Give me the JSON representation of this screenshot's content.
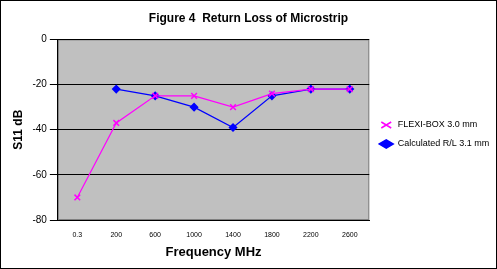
{
  "chart_data": {
    "type": "line",
    "title": "Figure 4  Return Loss of Microstrip",
    "x_label": "Frequency MHz",
    "y_label": "S11 dB",
    "categories": [
      "0.3",
      "200",
      "600",
      "1000",
      "1400",
      "1800",
      "2200",
      "2600"
    ],
    "series": [
      {
        "name": "FLEXI-BOX 3.0 mm",
        "color": "#ff00ff",
        "marker": "x",
        "values": [
          -70,
          -37,
          -25,
          -25,
          -30,
          -24,
          -22,
          -22
        ]
      },
      {
        "name": "Calculated R/L 3.1 mm",
        "color": "#0000ff",
        "marker": "diamond",
        "values": [
          null,
          -22,
          -25,
          -30,
          -39,
          -25,
          -22,
          -22
        ]
      }
    ],
    "ylim": [
      -80,
      0
    ],
    "yticks": [
      -80,
      -60,
      -40,
      -20,
      0
    ],
    "grid": true,
    "legend": "right"
  }
}
